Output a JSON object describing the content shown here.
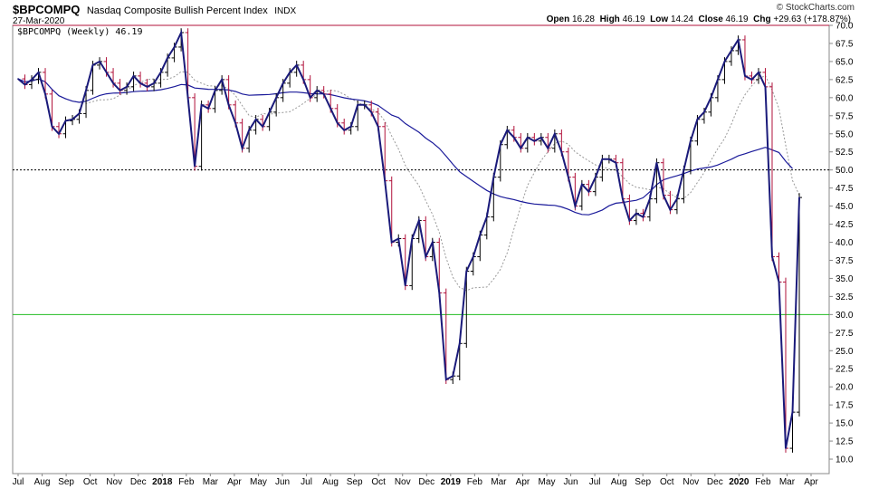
{
  "header": {
    "symbol": "$BPCOMPQ",
    "name": "Nasdaq Composite Bullish Percent Index",
    "exchange": "INDX",
    "date": "27-Mar-2020",
    "copyright": "© StockCharts.com",
    "open_label": "Open",
    "open": "16.28",
    "high_label": "High",
    "high": "46.19",
    "low_label": "Low",
    "low": "14.24",
    "close_label": "Close",
    "close": "46.19",
    "chg_label": "Chg",
    "chg": "+29.63 (+178.87%)"
  },
  "legend": "$BPCOMPQ (Weekly) 46.19",
  "colors": {
    "price": "#1a1a7a",
    "ma_long": "#1a1a9a",
    "ma_short": "#999999",
    "up_bar": "#000000",
    "down_bar": "#b0103a",
    "upper_line": "#b0103a",
    "lower_line": "#22bb22"
  },
  "chart_data": {
    "type": "line",
    "ylim": [
      8,
      70
    ],
    "yticks": [
      "70.0",
      "67.5",
      "65.0",
      "62.5",
      "60.0",
      "57.5",
      "55.0",
      "52.5",
      "50.0",
      "47.5",
      "45.0",
      "42.5",
      "40.0",
      "37.5",
      "35.0",
      "32.5",
      "30.0",
      "27.5",
      "25.0",
      "22.5",
      "20.0",
      "17.5",
      "15.0",
      "12.5",
      "10.0"
    ],
    "reference_lines": [
      {
        "value": 70,
        "style": "solid",
        "color": "#b0103a"
      },
      {
        "value": 50,
        "style": "dotted",
        "color": "#000000"
      },
      {
        "value": 30,
        "style": "solid",
        "color": "#22bb22"
      }
    ],
    "x_labels": [
      {
        "label": "Jul",
        "bold": false
      },
      {
        "label": "Aug",
        "bold": false
      },
      {
        "label": "Sep",
        "bold": false
      },
      {
        "label": "Oct",
        "bold": false
      },
      {
        "label": "Nov",
        "bold": false
      },
      {
        "label": "Dec",
        "bold": false
      },
      {
        "label": "2018",
        "bold": true
      },
      {
        "label": "Feb",
        "bold": false
      },
      {
        "label": "Mar",
        "bold": false
      },
      {
        "label": "Apr",
        "bold": false
      },
      {
        "label": "May",
        "bold": false
      },
      {
        "label": "Jun",
        "bold": false
      },
      {
        "label": "Jul",
        "bold": false
      },
      {
        "label": "Aug",
        "bold": false
      },
      {
        "label": "Sep",
        "bold": false
      },
      {
        "label": "Oct",
        "bold": false
      },
      {
        "label": "Nov",
        "bold": false
      },
      {
        "label": "Dec",
        "bold": false
      },
      {
        "label": "2019",
        "bold": true
      },
      {
        "label": "Feb",
        "bold": false
      },
      {
        "label": "Mar",
        "bold": false
      },
      {
        "label": "Apr",
        "bold": false
      },
      {
        "label": "May",
        "bold": false
      },
      {
        "label": "Jun",
        "bold": false
      },
      {
        "label": "Jul",
        "bold": false
      },
      {
        "label": "Aug",
        "bold": false
      },
      {
        "label": "Sep",
        "bold": false
      },
      {
        "label": "Oct",
        "bold": false
      },
      {
        "label": "Nov",
        "bold": false
      },
      {
        "label": "Dec",
        "bold": false
      },
      {
        "label": "2020",
        "bold": true
      },
      {
        "label": "Feb",
        "bold": false
      },
      {
        "label": "Mar",
        "bold": false
      },
      {
        "label": "Apr",
        "bold": false
      }
    ],
    "series": [
      {
        "kind": "price",
        "values": [
          62.6,
          61.8,
          62.5,
          63.5,
          60.5,
          56.0,
          55.0,
          56.8,
          57.0,
          57.8,
          61.0,
          64.5,
          65.0,
          63.5,
          62.0,
          61.0,
          61.5,
          63.0,
          62.0,
          61.5,
          62.0,
          63.5,
          65.5,
          67.0,
          69.0,
          60.0,
          50.5,
          59.0,
          58.5,
          61.0,
          62.5,
          59.0,
          56.5,
          53.0,
          55.5,
          57.0,
          56.0,
          58.0,
          60.0,
          62.0,
          63.5,
          64.5,
          62.5,
          60.0,
          61.0,
          60.5,
          58.5,
          56.5,
          55.5,
          56.0,
          59.0,
          59.0,
          58.0,
          56.0,
          48.5,
          40.0,
          40.5,
          34.0,
          40.5,
          43.0,
          38.0,
          40.0,
          33.0,
          21.0,
          21.5,
          26.0,
          36.0,
          38.0,
          41.0,
          43.5,
          49.0,
          53.5,
          55.5,
          54.5,
          53.0,
          54.5,
          54.0,
          54.5,
          53.0,
          55.0,
          52.5,
          49.0,
          45.0,
          48.0,
          47.0,
          49.0,
          51.5,
          51.5,
          51.0,
          46.0,
          43.0,
          44.0,
          43.5,
          46.0,
          51.0,
          46.5,
          44.5,
          46.0,
          50.0,
          54.0,
          57.0,
          58.0,
          60.0,
          62.5,
          65.0,
          66.5,
          68.0,
          63.0,
          62.5,
          63.5,
          61.5,
          38.0,
          34.5,
          11.5,
          16.5,
          46.19
        ]
      }
    ]
  }
}
